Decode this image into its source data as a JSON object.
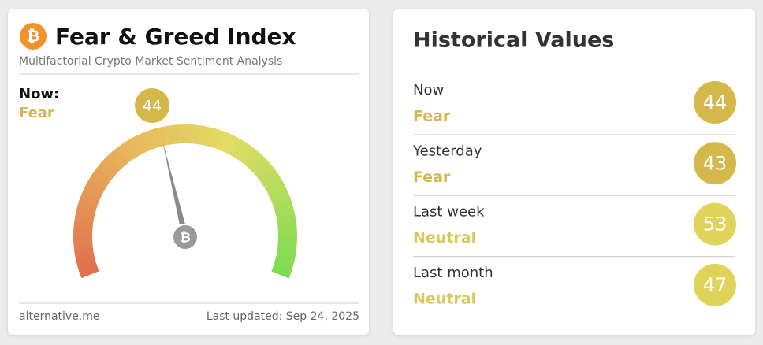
{
  "header": {
    "title": "Fear & Greed Index",
    "subtitle": "Multifactorial Crypto Market Sentiment Analysis"
  },
  "now": {
    "label": "Now:",
    "classification": "Fear",
    "value": 44
  },
  "gauge": {
    "range": [
      0,
      100
    ]
  },
  "footer": {
    "source": "alternative.me",
    "updated": "Last updated: Sep 24, 2025"
  },
  "history": {
    "title": "Historical Values",
    "rows": [
      {
        "period": "Now",
        "classification": "Fear",
        "value": 44
      },
      {
        "period": "Yesterday",
        "classification": "Fear",
        "value": 43
      },
      {
        "period": "Last week",
        "classification": "Neutral",
        "value": 53
      },
      {
        "period": "Last month",
        "classification": "Neutral",
        "value": 47
      }
    ]
  }
}
